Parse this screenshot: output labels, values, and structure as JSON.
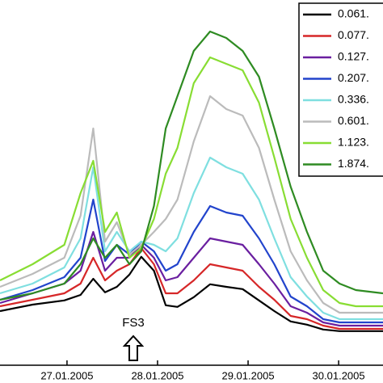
{
  "chart_data": {
    "type": "line",
    "annotation": "FS3",
    "x": [
      26.26,
      26.62,
      26.97,
      27.15,
      27.29,
      27.42,
      27.55,
      27.69,
      27.82,
      27.96,
      28.09,
      28.22,
      28.4,
      28.58,
      28.76,
      28.94,
      29.12,
      29.29,
      29.47,
      29.65,
      29.83,
      30.01,
      30.19,
      30.49
    ],
    "xlim": [
      26.26,
      30.49
    ],
    "xticks": [
      {
        "value": 27,
        "label": "27.01.2005"
      },
      {
        "value": 28,
        "label": "28.01.2005"
      },
      {
        "value": 29,
        "label": "29.01.2005"
      },
      {
        "value": 30,
        "label": "30.01.2005"
      }
    ],
    "ylim": [
      0,
      100
    ],
    "legend": "top-right",
    "series": [
      {
        "name": "0.061.",
        "color": "#000000",
        "values": [
          7.5,
          9.5,
          10.8,
          12.5,
          17.5,
          13.3,
          15,
          18.8,
          24.3,
          20,
          9.3,
          8.8,
          11.8,
          15.8,
          15,
          14.3,
          10.8,
          7.5,
          4.3,
          3.3,
          1.8,
          1.3,
          1.3,
          1.3
        ]
      },
      {
        "name": "0.077.",
        "color": "#d62728",
        "values": [
          9,
          11,
          13,
          16,
          24,
          17,
          20,
          22,
          27,
          22,
          13,
          13,
          17,
          22,
          21,
          20,
          15,
          11,
          6,
          5,
          3,
          2,
          2,
          2
        ]
      },
      {
        "name": "0.127.",
        "color": "#6a1fa0",
        "values": [
          10,
          13,
          16,
          20,
          32,
          20,
          24,
          24,
          28,
          24,
          17,
          18,
          24,
          30,
          29,
          28,
          22,
          16,
          9,
          7,
          4,
          3,
          3,
          3
        ]
      },
      {
        "name": "0.207.",
        "color": "#2244cc",
        "values": [
          11,
          14,
          18,
          24,
          42,
          23,
          28,
          25,
          29,
          26,
          20,
          22,
          32,
          40,
          38,
          37,
          30,
          22,
          12,
          9,
          5,
          4,
          4,
          4
        ]
      },
      {
        "name": "0.336.",
        "color": "#7fdfe0",
        "values": [
          13,
          16,
          21,
          30,
          52,
          26,
          32,
          26,
          29,
          28,
          26,
          30,
          44,
          55,
          52,
          50,
          42,
          30,
          18,
          12,
          7,
          5,
          5,
          5
        ]
      },
      {
        "name": "0.601.",
        "color": "#bbbbbb",
        "values": [
          15,
          19,
          24,
          37,
          64,
          29,
          35,
          25,
          28,
          32,
          36,
          42,
          60,
          74,
          70,
          68,
          58,
          42,
          26,
          17,
          10,
          7,
          7,
          7
        ]
      },
      {
        "name": "1.123.",
        "color": "#88dd33",
        "values": [
          17,
          22,
          28,
          44,
          54,
          32,
          38,
          24,
          27,
          36,
          50,
          58,
          78,
          86,
          84,
          82,
          72,
          55,
          36,
          24,
          14,
          10,
          9,
          9
        ]
      },
      {
        "name": "1.874.",
        "color": "#2e8b22",
        "values": [
          11,
          13,
          16,
          22,
          30,
          24,
          28,
          22,
          26,
          40,
          64,
          74,
          88,
          94,
          92,
          88,
          80,
          64,
          46,
          32,
          20,
          16,
          14,
          13
        ]
      }
    ]
  }
}
